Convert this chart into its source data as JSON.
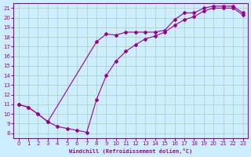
{
  "xlabel": "Windchill (Refroidissement éolien,°C)",
  "bg_color": "#cceeff",
  "line_color": "#990099",
  "grid_color": "#aaccbb",
  "xlim": [
    -0.5,
    23.5
  ],
  "ylim": [
    7.5,
    21.5
  ],
  "xticks": [
    0,
    1,
    2,
    3,
    4,
    5,
    6,
    7,
    8,
    9,
    10,
    11,
    12,
    13,
    14,
    15,
    16,
    17,
    18,
    19,
    20,
    21,
    22,
    23
  ],
  "yticks": [
    8,
    9,
    10,
    11,
    12,
    13,
    14,
    15,
    16,
    17,
    18,
    19,
    20,
    21
  ],
  "line1_x": [
    0,
    1,
    2,
    3,
    8,
    9,
    10,
    11,
    12,
    13,
    14,
    15,
    16,
    17,
    18,
    19,
    20,
    21,
    22,
    23
  ],
  "line1_y": [
    11,
    10.7,
    10.0,
    9.2,
    17.5,
    18.3,
    18.2,
    18.5,
    18.5,
    18.5,
    18.5,
    18.7,
    19.8,
    20.5,
    20.5,
    21.0,
    21.2,
    21.2,
    21.2,
    20.5
  ],
  "line2_x": [
    0,
    1,
    2,
    3,
    4,
    5,
    6,
    7,
    8,
    9,
    10,
    11,
    12,
    13,
    14,
    15,
    16,
    17,
    18,
    19,
    20,
    21,
    22,
    23
  ],
  "line2_y": [
    11,
    10.7,
    10.0,
    9.2,
    8.7,
    8.5,
    8.3,
    8.1,
    11.5,
    14.0,
    15.5,
    16.5,
    17.2,
    17.8,
    18.1,
    18.5,
    19.2,
    19.8,
    20.1,
    20.7,
    21.0,
    21.0,
    21.0,
    20.3
  ]
}
